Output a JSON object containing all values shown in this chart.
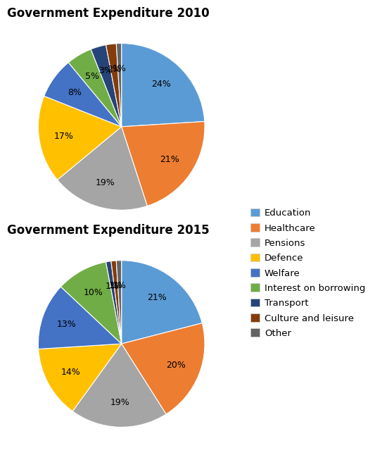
{
  "title2010": "Government Expenditure 2010",
  "title2015": "Government Expenditure 2015",
  "categories": [
    "Education",
    "Healthcare",
    "Pensions",
    "Defence",
    "Welfare",
    "Interest on borrowing",
    "Transport",
    "Culture and leisure",
    "Other"
  ],
  "values2010": [
    24,
    21,
    19,
    17,
    8,
    5,
    3,
    2,
    1
  ],
  "values2015": [
    21,
    20,
    19,
    14,
    13,
    10,
    1,
    1,
    1
  ],
  "colors": [
    "#5B9BD5",
    "#ED7D31",
    "#A5A5A5",
    "#FFC000",
    "#4472C4",
    "#70AD47",
    "#264478",
    "#843C0C",
    "#636363"
  ],
  "title_fontsize": 12,
  "label_fontsize": 9,
  "legend_fontsize": 9.5
}
